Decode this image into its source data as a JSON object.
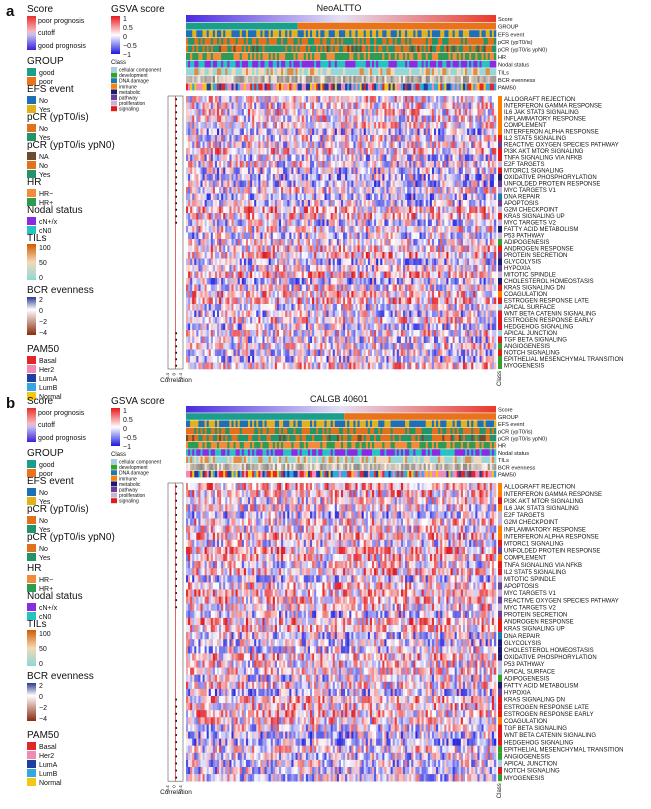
{
  "panels": [
    {
      "letter": "a",
      "title": "NeoALTTO",
      "columns": 150,
      "correlation_label": "Correlation",
      "class_label": "Class",
      "corr_ticks": [
        "−0.4",
        "0",
        "0.4"
      ],
      "tracks": [
        "Score",
        "GROUP",
        "EFS event",
        "pCR (ypT0/is)",
        "pCR (ypT0/is ypN0)",
        "HR",
        "Nodal status",
        "TILs",
        "BCR evenness",
        "PAM50"
      ],
      "pathways": [
        {
          "name": "ALLOGRAFT REJECTION",
          "cls": "immune",
          "sig": true
        },
        {
          "name": "INTERFERON GAMMA RESPONSE",
          "cls": "immune",
          "sig": true
        },
        {
          "name": "IL6 JAK STAT3 SIGNALING",
          "cls": "immune",
          "sig": true
        },
        {
          "name": "INFLAMMATORY RESPONSE",
          "cls": "immune",
          "sig": true
        },
        {
          "name": "COMPLEMENT",
          "cls": "immune",
          "sig": true
        },
        {
          "name": "INTERFERON ALPHA RESPONSE",
          "cls": "immune",
          "sig": true
        },
        {
          "name": "IL2 STAT5 SIGNALING",
          "cls": "signaling",
          "sig": true
        },
        {
          "name": "REACTIVE OXYGEN SPECIES PATHWAY",
          "cls": "pathway",
          "sig": true
        },
        {
          "name": "PI3K AKT MTOR SIGNALING",
          "cls": "signaling",
          "sig": true
        },
        {
          "name": "TNFA SIGNALING VIA NFKB",
          "cls": "signaling",
          "sig": true
        },
        {
          "name": "E2F TARGETS",
          "cls": "proliferation",
          "sig": true
        },
        {
          "name": "MTORC1 SIGNALING",
          "cls": "signaling",
          "sig": true
        },
        {
          "name": "OXIDATIVE PHOSPHORYLATION",
          "cls": "metabolic",
          "sig": true
        },
        {
          "name": "UNFOLDED PROTEIN RESPONSE",
          "cls": "pathway",
          "sig": true
        },
        {
          "name": "MYC TARGETS V1",
          "cls": "proliferation",
          "sig": true
        },
        {
          "name": "DNA REPAIR",
          "cls": "dna",
          "sig": true
        },
        {
          "name": "APOPTOSIS",
          "cls": "pathway",
          "sig": true
        },
        {
          "name": "G2M CHECKPOINT",
          "cls": "proliferation",
          "sig": true
        },
        {
          "name": "KRAS SIGNALING UP",
          "cls": "signaling",
          "sig": true
        },
        {
          "name": "MYC TARGETS V2",
          "cls": "proliferation",
          "sig": true
        },
        {
          "name": "FATTY ACID METABOLISM",
          "cls": "metabolic",
          "sig": false
        },
        {
          "name": "P53 PATHWAY",
          "cls": "proliferation",
          "sig": false
        },
        {
          "name": "ADIPOGENESIS",
          "cls": "development",
          "sig": false
        },
        {
          "name": "ANDROGEN RESPONSE",
          "cls": "signaling",
          "sig": false
        },
        {
          "name": "PROTEIN SECRETION",
          "cls": "pathway",
          "sig": false
        },
        {
          "name": "GLYCOLYSIS",
          "cls": "metabolic",
          "sig": false
        },
        {
          "name": "HYPOXIA",
          "cls": "pathway",
          "sig": false
        },
        {
          "name": "MITOTIC SPINDLE",
          "cls": "proliferation",
          "sig": false
        },
        {
          "name": "CHOLESTEROL HOMEOSTASIS",
          "cls": "metabolic",
          "sig": false
        },
        {
          "name": "KRAS SIGNALING DN",
          "cls": "signaling",
          "sig": false
        },
        {
          "name": "COAGULATION",
          "cls": "immune",
          "sig": false
        },
        {
          "name": "ESTROGEN RESPONSE LATE",
          "cls": "signaling",
          "sig": false
        },
        {
          "name": "APICAL SURFACE",
          "cls": "cellular",
          "sig": false
        },
        {
          "name": "WNT BETA CATENIN SIGNALING",
          "cls": "signaling",
          "sig": false
        },
        {
          "name": "ESTROGEN RESPONSE EARLY",
          "cls": "signaling",
          "sig": false
        },
        {
          "name": "HEDGEHOG SIGNALING",
          "cls": "signaling",
          "sig": false
        },
        {
          "name": "APICAL JUNCTION",
          "cls": "cellular",
          "sig": true
        },
        {
          "name": "TGF BETA SIGNALING",
          "cls": "signaling",
          "sig": true
        },
        {
          "name": "ANGIOGENESIS",
          "cls": "development",
          "sig": true
        },
        {
          "name": "NOTCH SIGNALING",
          "cls": "signaling",
          "sig": true
        },
        {
          "name": "EPITHELIAL MESENCHYMAL TRANSITION",
          "cls": "development",
          "sig": true
        },
        {
          "name": "MYOGENESIS",
          "cls": "development",
          "sig": true
        }
      ]
    },
    {
      "letter": "b",
      "title": "CALGB 40601",
      "columns": 150,
      "correlation_label": "Correlation",
      "class_label": "Class",
      "corr_ticks": [
        "−0.4",
        "0",
        "0.4"
      ],
      "tracks": [
        "Score",
        "GROUP",
        "EFS event",
        "pCR (ypT0/is)",
        "pCR (ypT0/is ypN0)",
        "HR",
        "Nodal status",
        "TILs",
        "BCR evenness",
        "PAM50"
      ],
      "pathways": [
        {
          "name": "ALLOGRAFT REJECTION",
          "cls": "immune",
          "sig": true
        },
        {
          "name": "INTERFERON GAMMA RESPONSE",
          "cls": "immune",
          "sig": true
        },
        {
          "name": "PI3K AKT MTOR SIGNALING",
          "cls": "signaling",
          "sig": true
        },
        {
          "name": "IL6 JAK STAT3 SIGNALING",
          "cls": "immune",
          "sig": true
        },
        {
          "name": "E2F TARGETS",
          "cls": "proliferation",
          "sig": true
        },
        {
          "name": "G2M CHECKPOINT",
          "cls": "proliferation",
          "sig": true
        },
        {
          "name": "INFLAMMATORY RESPONSE",
          "cls": "immune",
          "sig": true
        },
        {
          "name": "INTERFERON ALPHA RESPONSE",
          "cls": "immune",
          "sig": true
        },
        {
          "name": "MTORC1 SIGNALING",
          "cls": "signaling",
          "sig": true
        },
        {
          "name": "UNFOLDED PROTEIN RESPONSE",
          "cls": "pathway",
          "sig": true
        },
        {
          "name": "COMPLEMENT",
          "cls": "immune",
          "sig": true
        },
        {
          "name": "TNFA SIGNALING VIA NFKB",
          "cls": "signaling",
          "sig": true
        },
        {
          "name": "IL2 STAT5 SIGNALING",
          "cls": "signaling",
          "sig": true
        },
        {
          "name": "MITOTIC SPINDLE",
          "cls": "proliferation",
          "sig": true
        },
        {
          "name": "APOPTOSIS",
          "cls": "pathway",
          "sig": true
        },
        {
          "name": "MYC TARGETS V1",
          "cls": "proliferation",
          "sig": true
        },
        {
          "name": "REACTIVE OXYGEN SPECIES PATHWAY",
          "cls": "pathway",
          "sig": true
        },
        {
          "name": "MYC TARGETS V2",
          "cls": "proliferation",
          "sig": true
        },
        {
          "name": "PROTEIN SECRETION",
          "cls": "pathway",
          "sig": false
        },
        {
          "name": "ANDROGEN RESPONSE",
          "cls": "signaling",
          "sig": false
        },
        {
          "name": "KRAS SIGNALING UP",
          "cls": "signaling",
          "sig": false
        },
        {
          "name": "DNA REPAIR",
          "cls": "dna",
          "sig": false
        },
        {
          "name": "GLYCOLYSIS",
          "cls": "metabolic",
          "sig": false
        },
        {
          "name": "CHOLESTEROL HOMEOSTASIS",
          "cls": "metabolic",
          "sig": false
        },
        {
          "name": "OXIDATIVE PHOSPHORYLATION",
          "cls": "metabolic",
          "sig": false
        },
        {
          "name": "P53 PATHWAY",
          "cls": "proliferation",
          "sig": false
        },
        {
          "name": "APICAL SURFACE",
          "cls": "cellular",
          "sig": false
        },
        {
          "name": "ADIPOGENESIS",
          "cls": "development",
          "sig": false
        },
        {
          "name": "FATTY ACID METABOLISM",
          "cls": "metabolic",
          "sig": false
        },
        {
          "name": "HYPOXIA",
          "cls": "pathway",
          "sig": false
        },
        {
          "name": "KRAS SIGNALING DN",
          "cls": "signaling",
          "sig": true
        },
        {
          "name": "ESTROGEN RESPONSE LATE",
          "cls": "signaling",
          "sig": true
        },
        {
          "name": "ESTROGEN RESPONSE EARLY",
          "cls": "signaling",
          "sig": true
        },
        {
          "name": "COAGULATION",
          "cls": "immune",
          "sig": true
        },
        {
          "name": "TGF BETA SIGNALING",
          "cls": "signaling",
          "sig": true
        },
        {
          "name": "WNT BETA CATENIN SIGNALING",
          "cls": "signaling",
          "sig": true
        },
        {
          "name": "HEDGEHOG SIGNALING",
          "cls": "signaling",
          "sig": true
        },
        {
          "name": "EPITHELIAL MESENCHYMAL TRANSITION",
          "cls": "development",
          "sig": true
        },
        {
          "name": "ANGIOGENESIS",
          "cls": "development",
          "sig": true
        },
        {
          "name": "APICAL JUNCTION",
          "cls": "cellular",
          "sig": true
        },
        {
          "name": "NOTCH SIGNALING",
          "cls": "signaling",
          "sig": true
        },
        {
          "name": "MYOGENESIS",
          "cls": "development",
          "sig": true
        }
      ]
    }
  ],
  "legend": {
    "score_title": "Score",
    "score_labels": [
      "poor prognosis",
      "cutoff",
      "good prognosis"
    ],
    "group_title": "GROUP",
    "group_items": [
      {
        "label": "good",
        "color": "#1b9e8a"
      },
      {
        "label": "poor",
        "color": "#e8731a"
      }
    ],
    "efs_title": "EFS event",
    "efs_items": [
      {
        "label": "No",
        "color": "#1f6fb4"
      },
      {
        "label": "Yes",
        "color": "#e2b21c"
      }
    ],
    "pcr1_title": "pCR (ypT0/is)",
    "pcr1_items": [
      {
        "label": "No",
        "color": "#e2711d"
      },
      {
        "label": "Yes",
        "color": "#23946a"
      }
    ],
    "pcr2_title": "pCR (ypT0/is ypN0)",
    "pcr2_items_a": [
      {
        "label": "NA",
        "color": "#6b4c2e"
      },
      {
        "label": "No",
        "color": "#e2711d"
      },
      {
        "label": "Yes",
        "color": "#23946a"
      }
    ],
    "pcr2_items_b": [
      {
        "label": "No",
        "color": "#e2711d"
      },
      {
        "label": "Yes",
        "color": "#23946a"
      }
    ],
    "hr_title": "HR",
    "hr_items": [
      {
        "label": "HR−",
        "color": "#f28c3a"
      },
      {
        "label": "HR+",
        "color": "#2e9a52"
      }
    ],
    "nodal_title": "Nodal status",
    "nodal_items": [
      {
        "label": "cN+/x",
        "color": "#8a2be2"
      },
      {
        "label": "cN0",
        "color": "#26c3c0"
      }
    ],
    "tils_title": "TILs",
    "tils_ticks": [
      "100",
      "50",
      "0"
    ],
    "bcr_title": "BCR evenness",
    "bcr_ticks": [
      "2",
      "0",
      "−2",
      "−4"
    ],
    "pam50_title": "PAM50",
    "pam50_items": [
      {
        "label": "Basal",
        "color": "#e0282a"
      },
      {
        "label": "Her2",
        "color": "#f08bb8"
      },
      {
        "label": "LumA",
        "color": "#1f3f9f"
      },
      {
        "label": "LumB",
        "color": "#35a7e0"
      },
      {
        "label": "Normal",
        "color": "#f5c518"
      }
    ],
    "gsva_title": "GSVA score",
    "gsva_ticks": [
      "1",
      "0.5",
      "0",
      "−0.5",
      "−1"
    ],
    "class_title": "Class",
    "class_items": [
      {
        "key": "cellular",
        "label": "cellular component",
        "color": "#a6cee3"
      },
      {
        "key": "development",
        "label": "development",
        "color": "#33a02c"
      },
      {
        "key": "dna",
        "label": "DNA damage",
        "color": "#1f78b4"
      },
      {
        "key": "immune",
        "label": "immune",
        "color": "#ff7f00"
      },
      {
        "key": "metabolic",
        "label": "metabolic",
        "color": "#1a1a6e"
      },
      {
        "key": "pathway",
        "label": "pathway",
        "color": "#6a3d9a"
      },
      {
        "key": "proliferation",
        "label": "proliferation",
        "color": "#cab2d6"
      },
      {
        "key": "signaling",
        "label": "signaling",
        "color": "#e31a1c"
      }
    ]
  },
  "chart_data": [
    {
      "type": "heatmap",
      "title": "NeoALTTO",
      "color_scale": {
        "name": "GSVA score",
        "range": [
          -1,
          1
        ]
      },
      "rows": [
        "ALLOGRAFT REJECTION",
        "INTERFERON GAMMA RESPONSE",
        "IL6 JAK STAT3 SIGNALING",
        "INFLAMMATORY RESPONSE",
        "COMPLEMENT",
        "INTERFERON ALPHA RESPONSE",
        "IL2 STAT5 SIGNALING",
        "REACTIVE OXYGEN SPECIES PATHWAY",
        "PI3K AKT MTOR SIGNALING",
        "TNFA SIGNALING VIA NFKB",
        "E2F TARGETS",
        "MTORC1 SIGNALING",
        "OXIDATIVE PHOSPHORYLATION",
        "UNFOLDED PROTEIN RESPONSE",
        "MYC TARGETS V1",
        "DNA REPAIR",
        "APOPTOSIS",
        "G2M CHECKPOINT",
        "KRAS SIGNALING UP",
        "MYC TARGETS V2",
        "FATTY ACID METABOLISM",
        "P53 PATHWAY",
        "ADIPOGENESIS",
        "ANDROGEN RESPONSE",
        "PROTEIN SECRETION",
        "GLYCOLYSIS",
        "HYPOXIA",
        "MITOTIC SPINDLE",
        "CHOLESTEROL HOMEOSTASIS",
        "KRAS SIGNALING DN",
        "COAGULATION",
        "ESTROGEN RESPONSE LATE",
        "APICAL SURFACE",
        "WNT BETA CATENIN SIGNALING",
        "ESTROGEN RESPONSE EARLY",
        "HEDGEHOG SIGNALING",
        "APICAL JUNCTION",
        "TGF BETA SIGNALING",
        "ANGIOGENESIS",
        "NOTCH SIGNALING",
        "EPITHELIAL MESENCHYMAL TRANSITION",
        "MYOGENESIS"
      ],
      "columns_sorted_by": "Score"
    },
    {
      "type": "heatmap",
      "title": "CALGB 40601",
      "color_scale": {
        "name": "GSVA score",
        "range": [
          -1,
          1
        ]
      },
      "rows": [
        "ALLOGRAFT REJECTION",
        "INTERFERON GAMMA RESPONSE",
        "PI3K AKT MTOR SIGNALING",
        "IL6 JAK STAT3 SIGNALING",
        "E2F TARGETS",
        "G2M CHECKPOINT",
        "INFLAMMATORY RESPONSE",
        "INTERFERON ALPHA RESPONSE",
        "MTORC1 SIGNALING",
        "UNFOLDED PROTEIN RESPONSE",
        "COMPLEMENT",
        "TNFA SIGNALING VIA NFKB",
        "IL2 STAT5 SIGNALING",
        "MITOTIC SPINDLE",
        "APOPTOSIS",
        "MYC TARGETS V1",
        "REACTIVE OXYGEN SPECIES PATHWAY",
        "MYC TARGETS V2",
        "PROTEIN SECRETION",
        "ANDROGEN RESPONSE",
        "KRAS SIGNALING UP",
        "DNA REPAIR",
        "GLYCOLYSIS",
        "CHOLESTEROL HOMEOSTASIS",
        "OXIDATIVE PHOSPHORYLATION",
        "P53 PATHWAY",
        "APICAL SURFACE",
        "ADIPOGENESIS",
        "FATTY ACID METABOLISM",
        "HYPOXIA",
        "KRAS SIGNALING DN",
        "ESTROGEN RESPONSE LATE",
        "ESTROGEN RESPONSE EARLY",
        "COAGULATION",
        "TGF BETA SIGNALING",
        "WNT BETA CATENIN SIGNALING",
        "HEDGEHOG SIGNALING",
        "EPITHELIAL MESENCHYMAL TRANSITION",
        "ANGIOGENESIS",
        "APICAL JUNCTION",
        "NOTCH SIGNALING",
        "MYOGENESIS"
      ],
      "columns_sorted_by": "Score"
    }
  ]
}
